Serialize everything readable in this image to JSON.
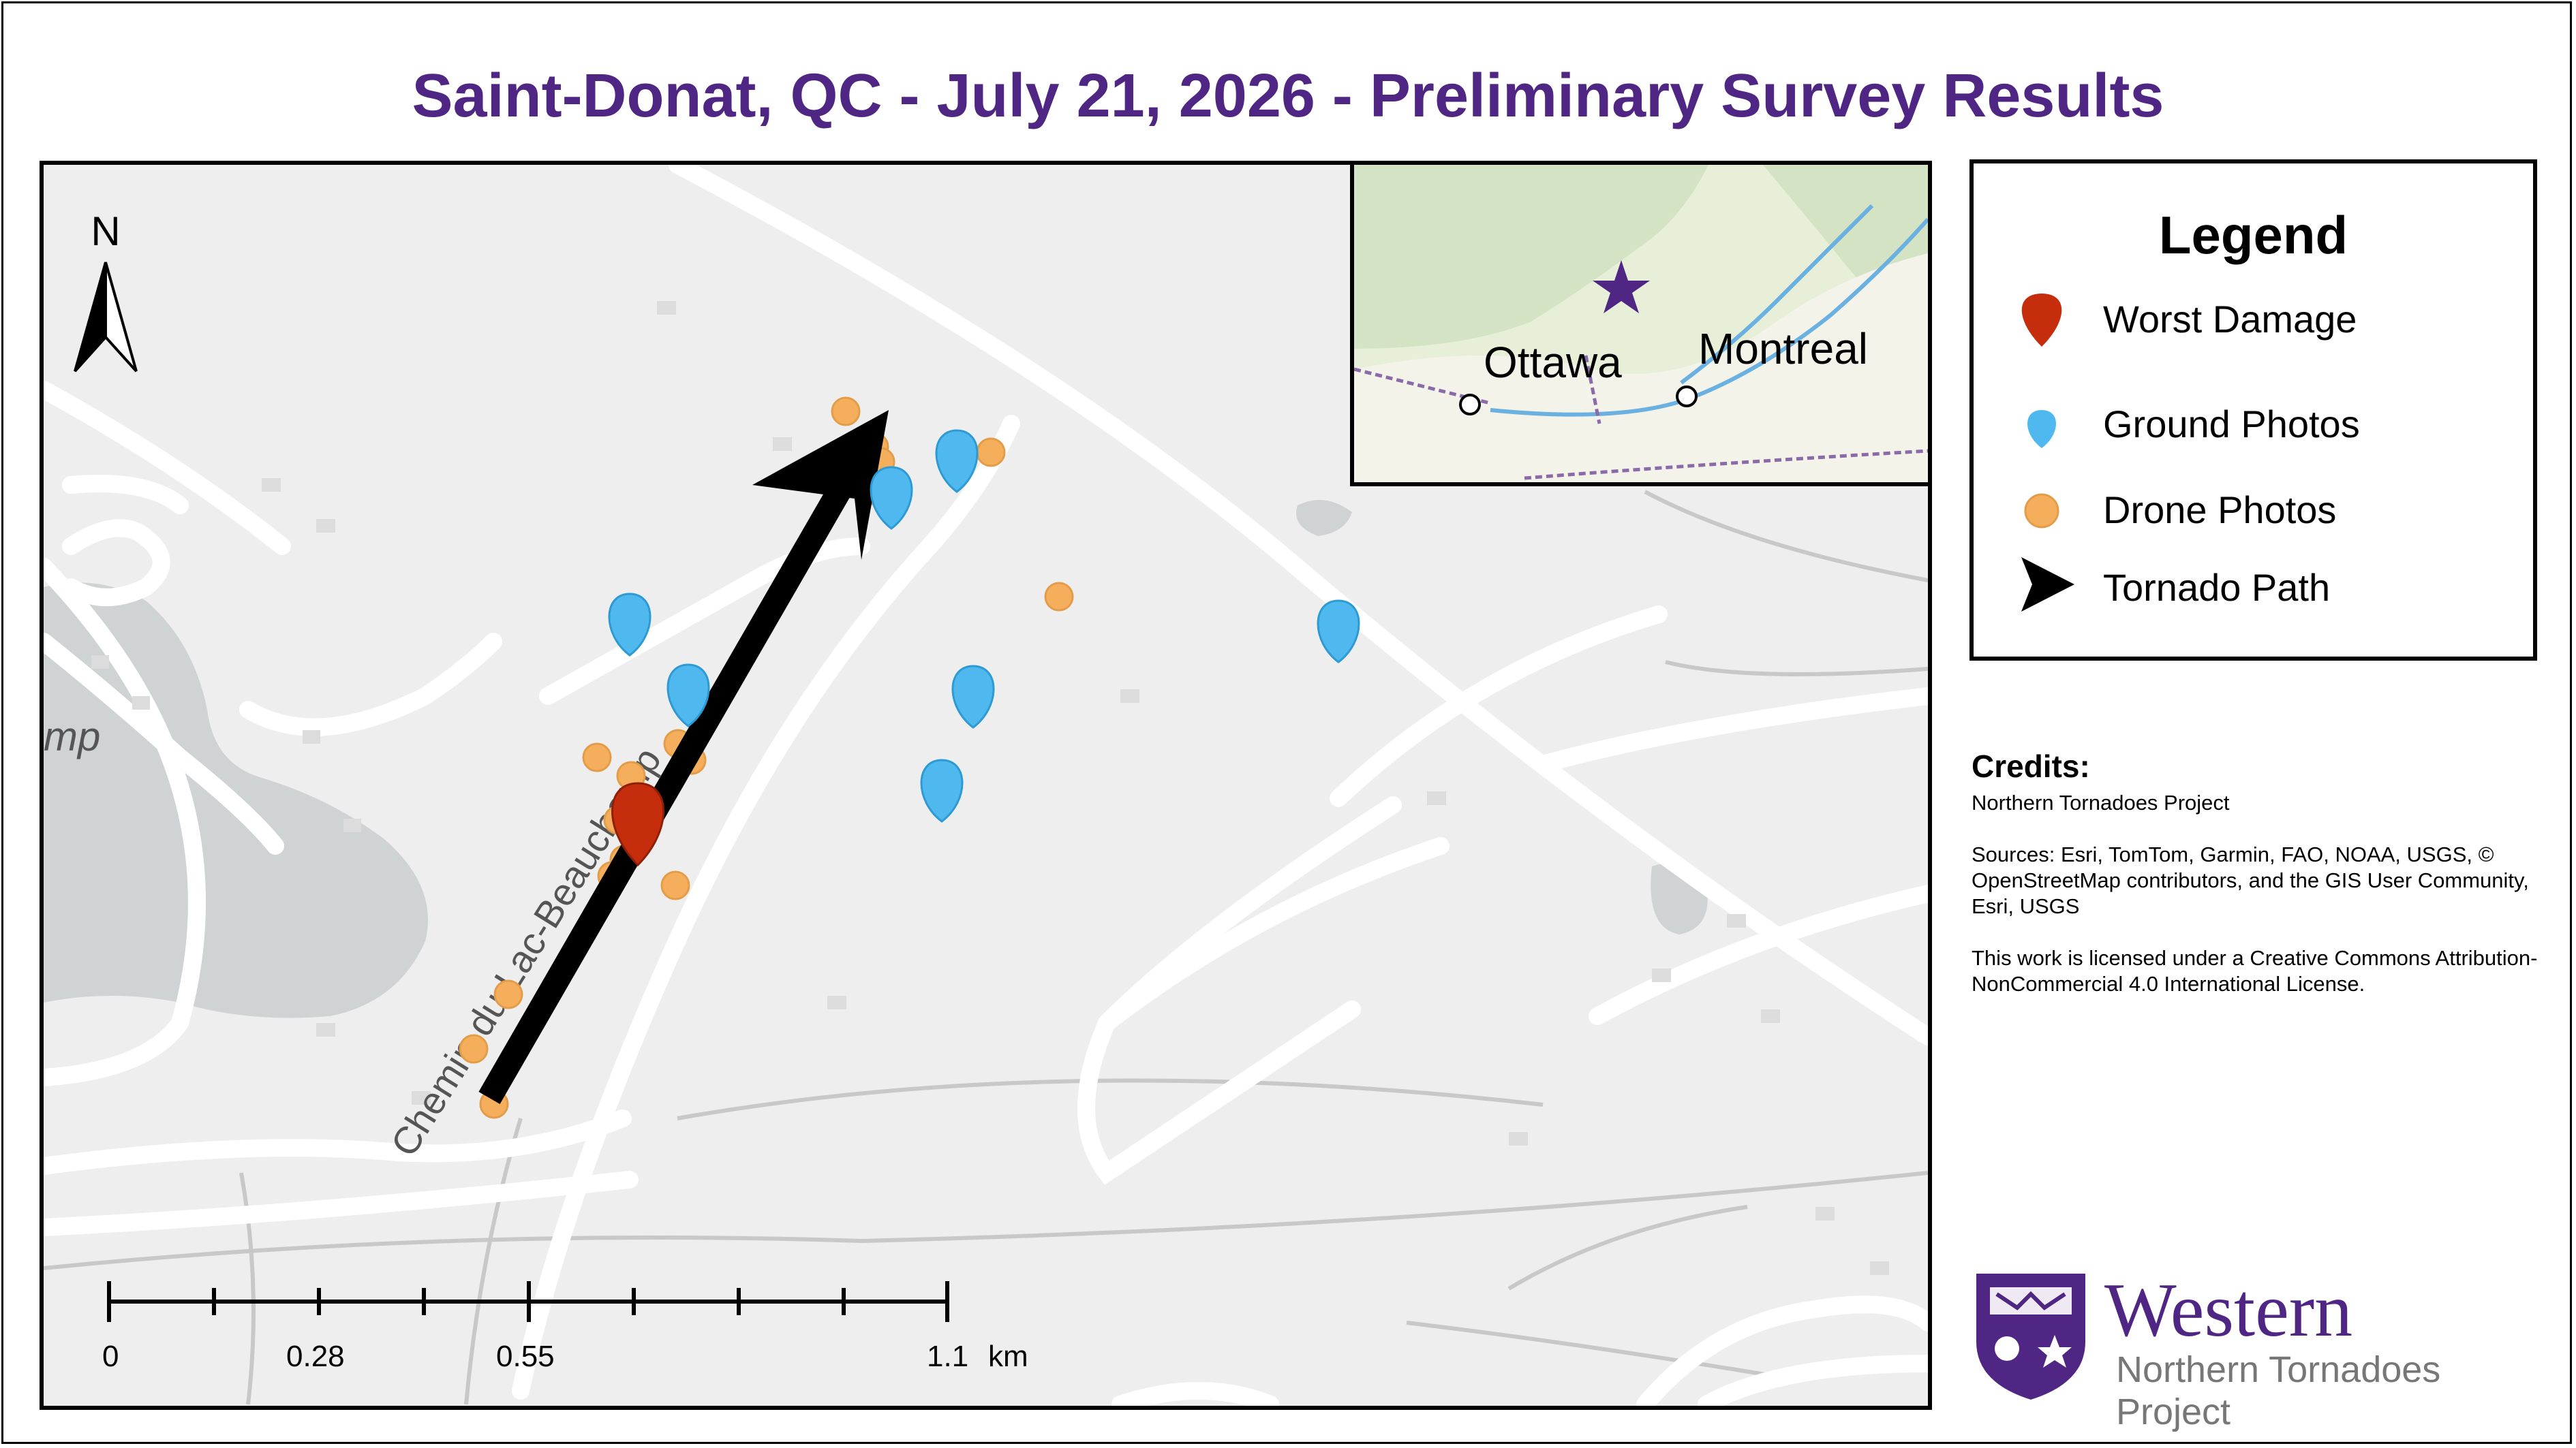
{
  "title": "Saint-Donat, QC - July 21, 2026 - Preliminary Survey Results",
  "map": {
    "road_label": "Chemin du Lac-Beauchamp",
    "lake_label": "mp",
    "north_label": "N",
    "scale": {
      "labels": [
        "0",
        "0.28",
        "0.55",
        "1.1"
      ],
      "unit": "km"
    },
    "colors": {
      "worst_damage": "#c62d0c",
      "ground_photos": "#4fb9ef",
      "drone_photos": "#f5ae5b",
      "tornado_path": "#000000"
    }
  },
  "inset": {
    "cities": [
      "Ottawa",
      "Montreal"
    ],
    "marker": "star-icon",
    "marker_color": "#4f2683"
  },
  "legend": {
    "title": "Legend",
    "items": [
      {
        "icon": "worst-damage-pin-icon",
        "label": "Worst Damage"
      },
      {
        "icon": "ground-photo-pin-icon",
        "label": "Ground Photos"
      },
      {
        "icon": "drone-photo-dot-icon",
        "label": "Drone Photos"
      },
      {
        "icon": "tornado-path-arrow-icon",
        "label": "Tornado Path"
      }
    ]
  },
  "credits": {
    "heading": "Credits:",
    "lines": [
      "Northern Tornadoes Project",
      "Sources: Esri, TomTom, Garmin, FAO, NOAA, USGS, © OpenStreetMap contributors, and the GIS User Community, Esri, USGS",
      "This work is licensed under a Creative Commons Attribution-NonCommercial 4.0 International License."
    ]
  },
  "logo": {
    "name": "Western",
    "subtitle": "Northern Tornadoes Project"
  }
}
